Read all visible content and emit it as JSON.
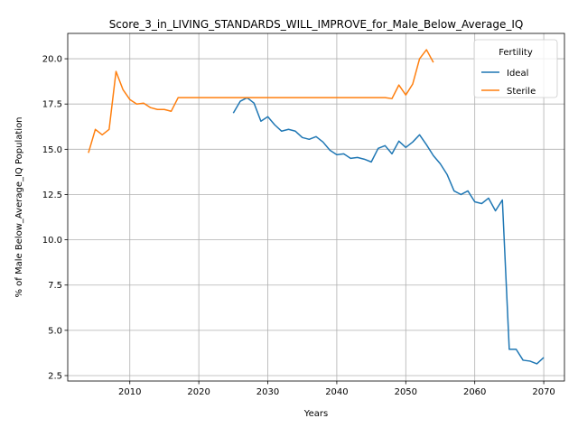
{
  "chart_data": {
    "type": "line",
    "title": "Score_3_in_LIVING_STANDARDS_WILL_IMPROVE_for_Male_Below_Average_IQ",
    "xlabel": "Years",
    "ylabel": "% of Male Below_Average_IQ Population",
    "xlim": [
      2001,
      2073
    ],
    "ylim": [
      2.2,
      21.4
    ],
    "x_ticks": [
      2010,
      2020,
      2030,
      2040,
      2050,
      2060,
      2070
    ],
    "y_ticks": [
      2.5,
      5.0,
      7.5,
      10.0,
      12.5,
      15.0,
      17.5,
      20.0
    ],
    "x_tick_labels": [
      "2010",
      "2020",
      "2030",
      "2040",
      "2050",
      "2060",
      "2070"
    ],
    "y_tick_labels": [
      "2.5",
      "5.0",
      "7.5",
      "10.0",
      "12.5",
      "15.0",
      "17.5",
      "20.0"
    ],
    "grid": true,
    "legend": {
      "title": "Fertility",
      "placement": "top-right"
    },
    "series": [
      {
        "name": "Ideal",
        "color": "#1f77b4",
        "x": [
          2025,
          2026,
          2027,
          2028,
          2029,
          2030,
          2031,
          2032,
          2033,
          2034,
          2035,
          2036,
          2037,
          2038,
          2039,
          2040,
          2041,
          2042,
          2043,
          2044,
          2045,
          2046,
          2047,
          2048,
          2049,
          2050,
          2051,
          2052,
          2053,
          2054,
          2055,
          2056,
          2057,
          2058,
          2059,
          2060,
          2061,
          2062,
          2063,
          2064,
          2065,
          2066,
          2067,
          2068,
          2069,
          2070
        ],
        "y": [
          17.0,
          17.65,
          17.85,
          17.55,
          16.55,
          16.8,
          16.35,
          16.0,
          16.1,
          16.0,
          15.65,
          15.55,
          15.7,
          15.4,
          14.95,
          14.7,
          14.75,
          14.5,
          14.55,
          14.45,
          14.3,
          15.05,
          15.2,
          14.75,
          15.45,
          15.1,
          15.4,
          15.8,
          15.25,
          14.65,
          14.2,
          13.6,
          12.7,
          12.5,
          12.7,
          12.1,
          12.0,
          12.3,
          11.6,
          12.2,
          3.95,
          3.95,
          3.35,
          3.3,
          3.15,
          3.5
        ]
      },
      {
        "name": "Sterile",
        "color": "#ff7f0e",
        "x": [
          2004,
          2005,
          2006,
          2007,
          2008,
          2009,
          2010,
          2011,
          2012,
          2013,
          2014,
          2015,
          2016,
          2017,
          2018,
          2019,
          2020,
          2021,
          2022,
          2023,
          2024,
          2025,
          2026,
          2027,
          2028,
          2029,
          2030,
          2031,
          2032,
          2033,
          2034,
          2035,
          2036,
          2037,
          2038,
          2039,
          2040,
          2041,
          2042,
          2043,
          2044,
          2045,
          2046,
          2047,
          2048,
          2049,
          2050,
          2051,
          2052,
          2053,
          2054
        ],
        "y": [
          14.8,
          16.1,
          15.8,
          16.1,
          19.3,
          18.3,
          17.75,
          17.5,
          17.55,
          17.3,
          17.2,
          17.2,
          17.1,
          17.85,
          17.85,
          17.85,
          17.85,
          17.85,
          17.85,
          17.85,
          17.85,
          17.85,
          17.85,
          17.85,
          17.85,
          17.85,
          17.85,
          17.85,
          17.85,
          17.85,
          17.85,
          17.85,
          17.85,
          17.85,
          17.85,
          17.85,
          17.85,
          17.85,
          17.85,
          17.85,
          17.85,
          17.85,
          17.85,
          17.85,
          17.8,
          18.55,
          18.0,
          18.6,
          20.0,
          20.5,
          19.8
        ]
      }
    ]
  }
}
